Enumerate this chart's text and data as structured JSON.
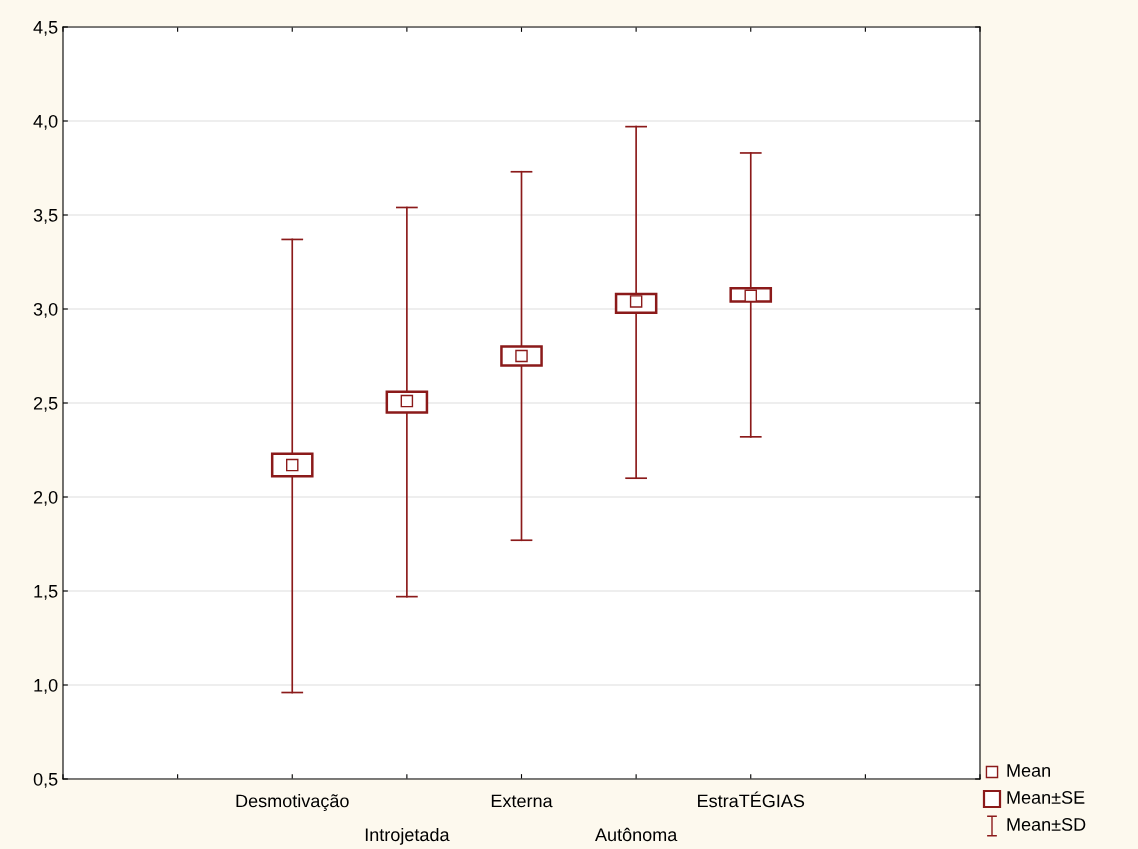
{
  "chart_data": {
    "type": "box",
    "categories": [
      null,
      "Desmotivação",
      "Introjetada",
      "Externa",
      "Autônoma",
      "EstraTÉGIAS",
      null
    ],
    "boxes": [
      null,
      {
        "low": 0.96,
        "q1": 2.11,
        "q3": 2.23,
        "high": 3.37,
        "mean": 2.17
      },
      {
        "low": 1.47,
        "q1": 2.45,
        "q3": 2.56,
        "high": 3.54,
        "mean": 2.51
      },
      {
        "low": 1.77,
        "q1": 2.7,
        "q3": 2.8,
        "high": 3.73,
        "mean": 2.75
      },
      {
        "low": 2.1,
        "q1": 2.98,
        "q3": 3.08,
        "high": 3.97,
        "mean": 3.04
      },
      {
        "low": 2.32,
        "q1": 3.04,
        "q3": 3.11,
        "high": 3.83,
        "mean": 3.07
      },
      null
    ],
    "color": "#8b1a1a",
    "ylim": [
      0.5,
      4.5
    ],
    "yticks": [
      {
        "value": 0.5,
        "label": "0,5"
      },
      {
        "value": 1.0,
        "label": "1,0"
      },
      {
        "value": 1.5,
        "label": "1,5"
      },
      {
        "value": 2.0,
        "label": "2,0"
      },
      {
        "value": 2.5,
        "label": "2,5"
      },
      {
        "value": 3.0,
        "label": "3,0"
      },
      {
        "value": 3.5,
        "label": "3,5"
      },
      {
        "value": 4.0,
        "label": "4,0"
      },
      {
        "value": 4.5,
        "label": "4,5"
      }
    ],
    "grid": "y",
    "annotations": [
      "Mean",
      "Mean±SE",
      "Mean±SD"
    ]
  }
}
